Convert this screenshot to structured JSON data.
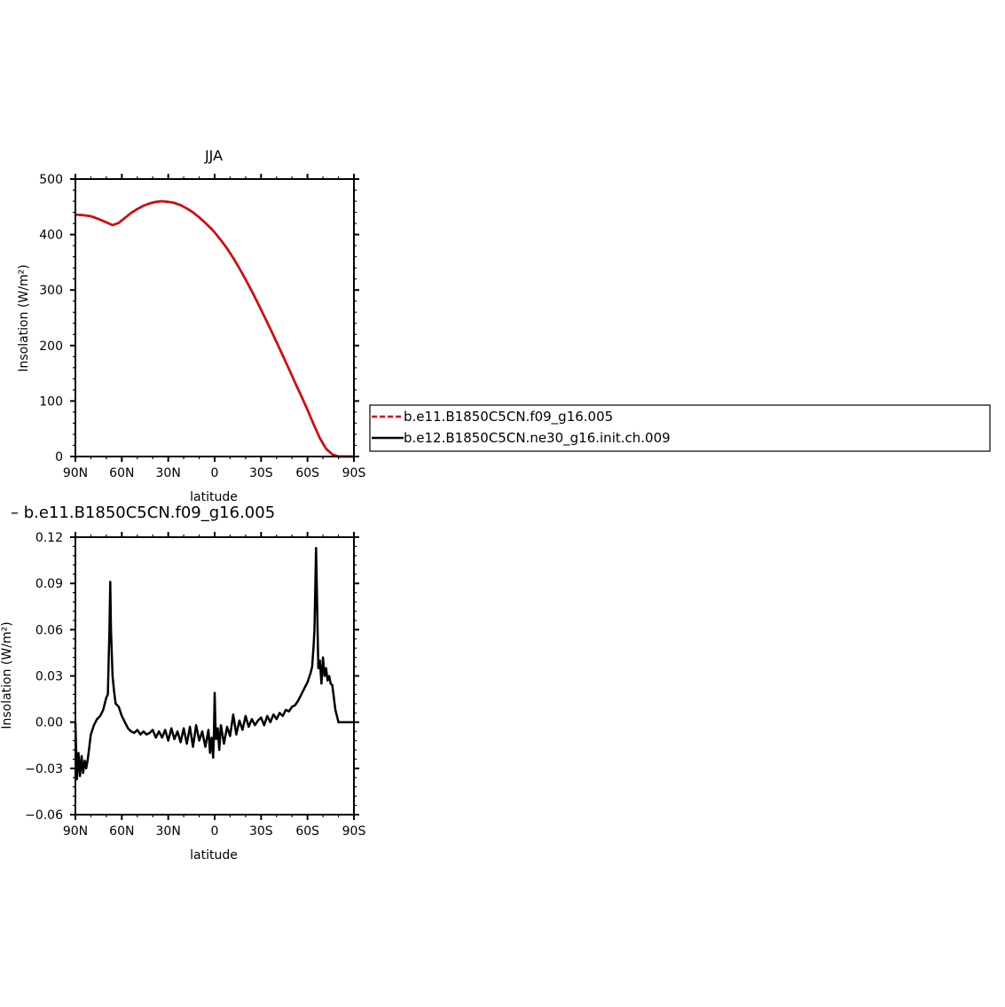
{
  "chart_data": [
    {
      "type": "line",
      "title": "JJA",
      "xlabel": "latitude",
      "ylabel": "Insolation (W/m²)",
      "xlim": [
        -90,
        90
      ],
      "ylim": [
        0,
        500
      ],
      "x_ticks": [
        -90,
        -60,
        -30,
        0,
        30,
        60,
        90
      ],
      "x_tick_labels": [
        "90N",
        "60N",
        "30N",
        "0",
        "30S",
        "60S",
        "90S"
      ],
      "y_ticks": [
        0,
        100,
        200,
        300,
        400,
        500
      ],
      "y_tick_labels": [
        "0",
        "100",
        "200",
        "300",
        "400",
        "500"
      ],
      "series": [
        {
          "name": "b.e11.B1850C5CN.f09_g16.005",
          "color": "#dd0000",
          "dash": "dashed",
          "x": [
            -90,
            -85,
            -80,
            -75,
            -70,
            -66,
            -62,
            -58,
            -54,
            -50,
            -46,
            -42,
            -38,
            -34,
            -30,
            -26,
            -22,
            -18,
            -14,
            -10,
            -6,
            -2,
            0,
            4,
            8,
            12,
            16,
            20,
            24,
            28,
            32,
            36,
            40,
            44,
            48,
            52,
            56,
            60,
            64,
            68,
            72,
            76,
            80,
            85,
            90
          ],
          "y": [
            436,
            435,
            433,
            428,
            422,
            417,
            421,
            430,
            439,
            446,
            452,
            456,
            459,
            460,
            459,
            457,
            453,
            447,
            440,
            431,
            421,
            410,
            404,
            390,
            375,
            358,
            339,
            319,
            298,
            276,
            253,
            230,
            206,
            182,
            158,
            133,
            109,
            84,
            58,
            33,
            14,
            4,
            0,
            0,
            0
          ]
        },
        {
          "name": "b.e12.B1850C5CN.ne30_g16.init.ch.009",
          "color": "#000000",
          "dash": "solid",
          "x": [
            -90,
            -85,
            -80,
            -75,
            -70,
            -66,
            -62,
            -58,
            -54,
            -50,
            -46,
            -42,
            -38,
            -34,
            -30,
            -26,
            -22,
            -18,
            -14,
            -10,
            -6,
            -2,
            0,
            4,
            8,
            12,
            16,
            20,
            24,
            28,
            32,
            36,
            40,
            44,
            48,
            52,
            56,
            60,
            64,
            68,
            72,
            76,
            80,
            85,
            90
          ],
          "y": [
            436,
            435,
            433,
            428,
            422,
            417,
            421,
            430,
            439,
            446,
            452,
            456,
            459,
            460,
            459,
            457,
            453,
            447,
            440,
            431,
            421,
            410,
            404,
            390,
            375,
            358,
            339,
            319,
            298,
            276,
            253,
            230,
            206,
            182,
            158,
            133,
            109,
            84,
            58,
            33,
            14,
            4,
            0,
            0,
            0
          ]
        }
      ]
    },
    {
      "type": "line",
      "title": "– b.e11.B1850C5CN.f09_g16.005",
      "xlabel": "latitude",
      "ylabel": "Insolation (W/m²)",
      "xlim": [
        -90,
        90
      ],
      "ylim": [
        -0.06,
        0.12
      ],
      "x_ticks": [
        -90,
        -60,
        -30,
        0,
        30,
        60,
        90
      ],
      "x_tick_labels": [
        "90N",
        "60N",
        "30N",
        "0",
        "30S",
        "60S",
        "90S"
      ],
      "y_ticks": [
        -0.06,
        -0.03,
        0,
        0.03,
        0.06,
        0.09,
        0.12
      ],
      "y_tick_labels": [
        "−0.06",
        "−0.03",
        "0.00",
        "0.03",
        "0.06",
        "0.09",
        "0.12"
      ],
      "series": [
        {
          "color": "#000000",
          "dash": "solid",
          "x": [
            -90,
            -89,
            -88,
            -87,
            -86,
            -85,
            -84,
            -83,
            -82,
            -80,
            -78,
            -76,
            -74,
            -72,
            -71,
            -70,
            -69,
            -68.5,
            -68,
            -67.5,
            -67,
            -66,
            -65,
            -64,
            -62,
            -60,
            -58,
            -56,
            -54,
            -52,
            -50,
            -48,
            -46,
            -44,
            -42,
            -40,
            -38,
            -36,
            -34,
            -32,
            -30,
            -28,
            -26,
            -24,
            -22,
            -20,
            -18,
            -16,
            -14,
            -12,
            -10,
            -8,
            -6,
            -4,
            -3,
            -2,
            -1,
            -0.5,
            0,
            0.5,
            1,
            2,
            3,
            4,
            6,
            8,
            10,
            12,
            14,
            16,
            18,
            20,
            22,
            24,
            26,
            28,
            30,
            32,
            34,
            36,
            38,
            40,
            42,
            44,
            46,
            48,
            50,
            52,
            54,
            56,
            58,
            60,
            62,
            63,
            64,
            64.5,
            65,
            65.5,
            66,
            66.5,
            67,
            68,
            69,
            70,
            71,
            72,
            73,
            74,
            75,
            76,
            78,
            80,
            82,
            85,
            88,
            90
          ],
          "y": [
            0.0,
            -0.037,
            -0.02,
            -0.035,
            -0.022,
            -0.033,
            -0.025,
            -0.03,
            -0.024,
            -0.008,
            -0.002,
            0.002,
            0.004,
            0.008,
            0.012,
            0.016,
            0.018,
            0.04,
            0.06,
            0.091,
            0.06,
            0.03,
            0.02,
            0.012,
            0.01,
            0.004,
            0.0,
            -0.004,
            -0.006,
            -0.007,
            -0.005,
            -0.008,
            -0.006,
            -0.008,
            -0.007,
            -0.005,
            -0.01,
            -0.006,
            -0.01,
            -0.005,
            -0.012,
            -0.004,
            -0.011,
            -0.006,
            -0.013,
            -0.004,
            -0.014,
            -0.003,
            -0.016,
            -0.002,
            -0.012,
            -0.006,
            -0.016,
            -0.005,
            -0.02,
            -0.01,
            -0.023,
            -0.01,
            0.019,
            -0.002,
            -0.011,
            -0.004,
            -0.018,
            -0.002,
            -0.014,
            -0.003,
            -0.009,
            0.005,
            -0.008,
            0.001,
            -0.005,
            0.004,
            -0.003,
            0.002,
            -0.002,
            0.001,
            0.003,
            -0.002,
            0.004,
            0.0,
            0.005,
            0.002,
            0.006,
            0.004,
            0.008,
            0.007,
            0.01,
            0.011,
            0.014,
            0.018,
            0.022,
            0.026,
            0.032,
            0.036,
            0.05,
            0.06,
            0.085,
            0.113,
            0.09,
            0.06,
            0.035,
            0.04,
            0.025,
            0.042,
            0.03,
            0.035,
            0.027,
            0.03,
            0.025,
            0.024,
            0.008,
            0.0,
            0.0,
            0.0,
            0.0,
            0.0
          ]
        }
      ]
    }
  ],
  "legend": {
    "entries": [
      {
        "label": "b.e11.B1850C5CN.f09_g16.005",
        "color": "#dd0000",
        "dash": "dashed"
      },
      {
        "label": "b.e12.B1850C5CN.ne30_g16.init.ch.009",
        "color": "#000000",
        "dash": "solid"
      }
    ]
  }
}
